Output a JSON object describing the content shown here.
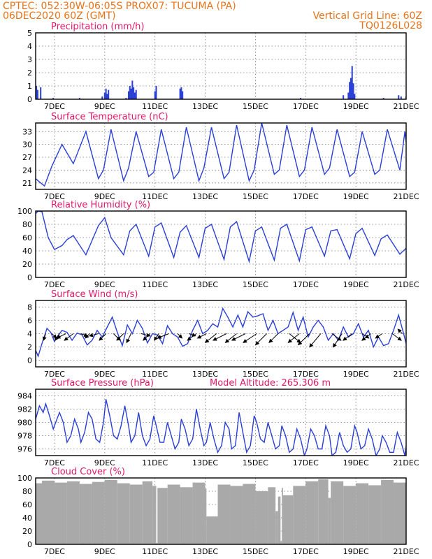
{
  "header": {
    "line1_left": "CPTEC:   052:30W-06:05S   PROX07: TUCUMA (PA)",
    "line2_left": "06DEC2020 60Z (GMT)",
    "line2_right": "Vertical Grid Line: 60Z",
    "line3_right": "TQ0126L028"
  },
  "colors": {
    "header": "#e8731a",
    "title": "#e0186a",
    "series": "#2a3fd6",
    "cloud": "#a9a9a9",
    "arrow": "#000000"
  },
  "x_axis": {
    "start_day": 6.25,
    "end_day": 21,
    "tick_days": [
      7,
      9,
      11,
      13,
      15,
      17,
      19,
      21
    ],
    "tick_labels": [
      "7DEC",
      "9DEC",
      "11DEC",
      "13DEC",
      "15DEC",
      "17DEC",
      "19DEC",
      "21DEC"
    ]
  },
  "chart_data": [
    {
      "id": "precip",
      "type": "bar",
      "title": "Precipitation (mm/h)",
      "ylim": [
        0,
        5
      ],
      "yticks": [
        0,
        1,
        2,
        3,
        4,
        5
      ],
      "grid": true,
      "x": [
        6.28,
        6.33,
        6.45,
        6.95,
        8.0,
        8.9,
        9.0,
        9.05,
        9.1,
        9.15,
        9.85,
        9.95,
        10.0,
        10.05,
        10.1,
        10.15,
        10.2,
        10.25,
        11.0,
        11.05,
        12.0,
        12.05,
        12.1,
        16.8,
        18.5,
        18.7,
        18.75,
        18.8,
        18.85,
        18.9,
        18.95,
        20.1,
        20.7,
        20.8,
        21.0
      ],
      "values": [
        1.0,
        0.7,
        0.9,
        0.1,
        0.1,
        0.2,
        0.5,
        0.8,
        0.4,
        0.7,
        0.1,
        0.6,
        1.0,
        0.8,
        1.4,
        0.9,
        0.5,
        0.7,
        0.6,
        1.0,
        0.8,
        0.9,
        0.6,
        0.1,
        0.3,
        0.5,
        1.3,
        1.6,
        2.5,
        1.2,
        0.4,
        0.1,
        0.3,
        0.2,
        0.2
      ]
    },
    {
      "id": "temp",
      "type": "line",
      "title": "Surface Temperature (nC)",
      "ylim": [
        19.5,
        35
      ],
      "yticks": [
        21,
        24,
        27,
        30,
        33
      ],
      "grid": true,
      "x": [
        6.25,
        6.45,
        6.6,
        6.9,
        7.3,
        7.55,
        7.75,
        8.25,
        8.75,
        8.95,
        9.25,
        9.75,
        9.95,
        10.25,
        10.75,
        10.95,
        11.25,
        11.75,
        11.95,
        12.25,
        12.75,
        12.95,
        13.25,
        13.75,
        13.95,
        14.25,
        14.75,
        14.95,
        15.25,
        15.75,
        15.95,
        16.25,
        16.75,
        16.95,
        17.25,
        17.75,
        17.95,
        18.25,
        18.75,
        18.95,
        19.25,
        19.75,
        19.95,
        20.25,
        20.75,
        20.95,
        21.0
      ],
      "values": [
        22,
        21,
        20.3,
        25,
        30,
        27.5,
        25.5,
        33,
        22,
        24,
        33.5,
        21.5,
        24.5,
        33,
        22.5,
        23.5,
        33.5,
        22,
        23.5,
        34,
        21.5,
        24.5,
        34,
        22,
        23.5,
        34.5,
        21.5,
        24,
        35,
        23,
        24,
        34.5,
        22.5,
        24,
        34,
        23,
        24.5,
        33.5,
        22.5,
        23.5,
        33,
        23,
        24,
        33.5,
        24,
        33,
        30.5
      ]
    },
    {
      "id": "rh",
      "type": "line",
      "title": "Relative Humidity (%)",
      "ylim": [
        0,
        100
      ],
      "yticks": [
        0,
        20,
        40,
        60,
        80,
        100
      ],
      "grid": true,
      "x": [
        6.25,
        6.35,
        6.5,
        6.75,
        7.0,
        7.3,
        7.5,
        7.75,
        8.25,
        8.75,
        9.0,
        9.25,
        9.75,
        10.0,
        10.25,
        10.75,
        11.0,
        11.25,
        11.75,
        12.0,
        12.25,
        12.75,
        13.0,
        13.25,
        13.75,
        14.0,
        14.25,
        14.75,
        15.0,
        15.25,
        15.75,
        16.0,
        16.25,
        16.75,
        17.0,
        17.25,
        17.75,
        18.0,
        18.25,
        18.75,
        19.0,
        19.25,
        19.75,
        20.0,
        20.25,
        20.75,
        21.0
      ],
      "values": [
        96,
        100,
        99,
        60,
        42,
        48,
        57,
        63,
        34,
        78,
        90,
        60,
        34,
        70,
        80,
        32,
        76,
        82,
        30,
        68,
        78,
        30,
        74,
        80,
        27,
        76,
        84,
        24,
        70,
        76,
        26,
        74,
        80,
        25,
        72,
        76,
        32,
        70,
        72,
        28,
        66,
        74,
        33,
        58,
        64,
        35,
        44
      ]
    },
    {
      "id": "wind",
      "type": "line",
      "title": "Surface Wind (m/s)",
      "ylim": [
        -1,
        9
      ],
      "yticks": [
        0,
        2,
        4,
        6,
        8
      ],
      "grid": true,
      "x": [
        6.25,
        6.35,
        6.5,
        6.7,
        6.85,
        7.0,
        7.1,
        7.3,
        7.5,
        7.7,
        7.9,
        8.1,
        8.3,
        8.5,
        8.7,
        8.9,
        9.1,
        9.3,
        9.5,
        9.7,
        9.9,
        10.1,
        10.3,
        10.5,
        10.7,
        10.9,
        11.1,
        11.3,
        11.5,
        11.7,
        11.9,
        12.1,
        12.3,
        12.5,
        12.7,
        12.9,
        13.1,
        13.3,
        13.5,
        13.7,
        13.9,
        14.1,
        14.3,
        14.5,
        14.7,
        14.9,
        15.1,
        15.3,
        15.5,
        15.7,
        15.9,
        16.1,
        16.3,
        16.5,
        16.7,
        16.9,
        17.1,
        17.3,
        17.5,
        17.7,
        17.9,
        18.1,
        18.3,
        18.5,
        18.7,
        18.9,
        19.1,
        19.3,
        19.5,
        19.7,
        19.9,
        20.1,
        20.3,
        20.5,
        20.7,
        20.9,
        21.0
      ],
      "values": [
        1.5,
        0.6,
        2.5,
        4.8,
        4.2,
        2.8,
        3.5,
        4.5,
        4.2,
        3.0,
        4.1,
        3.8,
        2.3,
        3.0,
        4.5,
        3.5,
        5.0,
        6.5,
        4.2,
        2.2,
        5.3,
        4.0,
        6.0,
        4.8,
        2.6,
        4.0,
        3.8,
        2.5,
        5.2,
        4.0,
        3.5,
        2.1,
        2.5,
        4.5,
        6.0,
        4.0,
        4.5,
        5.5,
        5.0,
        7.8,
        6.5,
        5.0,
        6.8,
        5.0,
        7.3,
        6.5,
        6.7,
        7.0,
        4.5,
        6.0,
        4.0,
        4.5,
        5.0,
        7.2,
        4.5,
        6.5,
        3.5,
        5.0,
        6.0,
        5.0,
        3.0,
        4.0,
        3.0,
        5.0,
        3.5,
        4.0,
        5.5,
        3.5,
        4.5,
        2.0,
        3.5,
        2.2,
        2.5,
        4.5,
        6.8,
        4.0,
        2.5
      ]
    },
    {
      "id": "pressure",
      "type": "line",
      "title": "Surface Pressure (hPa)",
      "annotation": "Model Altitude: 265.306 m",
      "ylim": [
        975,
        985
      ],
      "yticks": [
        976,
        978,
        980,
        982,
        984
      ],
      "grid": true,
      "x": [
        6.25,
        6.4,
        6.55,
        6.65,
        6.8,
        6.95,
        7.05,
        7.2,
        7.35,
        7.5,
        7.65,
        7.8,
        7.95,
        8.05,
        8.2,
        8.35,
        8.5,
        8.65,
        8.8,
        8.95,
        9.05,
        9.2,
        9.35,
        9.5,
        9.65,
        9.8,
        9.95,
        10.05,
        10.2,
        10.35,
        10.5,
        10.65,
        10.8,
        10.95,
        11.05,
        11.2,
        11.35,
        11.5,
        11.65,
        11.8,
        11.95,
        12.05,
        12.2,
        12.35,
        12.5,
        12.65,
        12.8,
        12.95,
        13.05,
        13.2,
        13.35,
        13.5,
        13.65,
        13.8,
        13.95,
        14.05,
        14.2,
        14.35,
        14.5,
        14.65,
        14.8,
        14.95,
        15.05,
        15.2,
        15.35,
        15.5,
        15.65,
        15.8,
        15.95,
        16.05,
        16.2,
        16.35,
        16.5,
        16.65,
        16.8,
        16.95,
        17.05,
        17.2,
        17.35,
        17.5,
        17.65,
        17.8,
        17.95,
        18.05,
        18.2,
        18.35,
        18.5,
        18.65,
        18.8,
        18.95,
        19.05,
        19.2,
        19.35,
        19.5,
        19.65,
        19.8,
        19.95,
        20.05,
        20.2,
        20.35,
        20.5,
        20.65,
        20.8,
        20.95,
        21.0
      ],
      "values": [
        980.5,
        982.5,
        981.5,
        982.8,
        981.0,
        979.0,
        980.0,
        981.5,
        980.0,
        977.0,
        978.0,
        980.5,
        979.0,
        977.0,
        978.5,
        981.5,
        980.5,
        977.5,
        977.0,
        980.0,
        983.5,
        981.0,
        978.0,
        977.5,
        979.5,
        982.5,
        979.5,
        977.0,
        978.0,
        981.5,
        978.0,
        976.5,
        977.5,
        981.0,
        979.5,
        977.0,
        977.0,
        980.0,
        978.0,
        976.0,
        977.0,
        980.5,
        979.0,
        976.5,
        977.5,
        982.0,
        979.0,
        976.5,
        977.0,
        980.0,
        977.5,
        975.5,
        976.5,
        980.0,
        979.0,
        976.0,
        976.5,
        981.5,
        978.5,
        975.5,
        976.5,
        981.0,
        980.0,
        977.5,
        977.0,
        980.0,
        978.0,
        976.0,
        976.5,
        979.5,
        978.0,
        975.5,
        976.0,
        979.0,
        977.5,
        975.0,
        976.0,
        979.0,
        978.0,
        976.0,
        976.0,
        979.5,
        978.0,
        975.0,
        975.5,
        978.5,
        976.5,
        975.5,
        976.0,
        979.5,
        978.5,
        976.0,
        976.5,
        979.0,
        977.5,
        975.0,
        976.0,
        978.0,
        977.0,
        975.5,
        975.5,
        978.5,
        977.0,
        975.0,
        976.5
      ]
    },
    {
      "id": "cloud",
      "type": "bar",
      "title": "Cloud Cover (%)",
      "ylim": [
        0,
        100
      ],
      "yticks": [
        0,
        20,
        40,
        60,
        80,
        100
      ],
      "grid": true,
      "x": [
        6.25,
        6.5,
        7.0,
        7.5,
        8.0,
        8.5,
        9.0,
        9.5,
        10.0,
        10.5,
        10.9,
        11.05,
        11.1,
        11.5,
        12.0,
        12.5,
        13.0,
        13.05,
        13.5,
        14.0,
        14.5,
        15.0,
        15.5,
        15.8,
        15.9,
        16.0,
        16.05,
        16.1,
        16.5,
        17.0,
        17.5,
        17.9,
        18.0,
        18.5,
        19.0,
        19.5,
        20.0,
        20.5,
        21.0
      ],
      "values": [
        92,
        96,
        93,
        95,
        91,
        94,
        97,
        92,
        90,
        95,
        88,
        2,
        85,
        90,
        86,
        93,
        84,
        42,
        90,
        88,
        91,
        80,
        86,
        50,
        72,
        5,
        85,
        74,
        88,
        95,
        98,
        70,
        95,
        88,
        92,
        89,
        97,
        93,
        95
      ]
    }
  ],
  "wind_vectors": {
    "x": [
      6.65,
      6.9,
      7.2,
      7.45,
      7.75,
      8.05,
      8.4,
      8.75,
      9.05,
      9.35,
      9.75,
      10.05,
      10.45,
      10.8,
      11.15,
      11.55,
      11.9,
      12.35,
      12.65,
      13.05,
      13.45,
      13.85,
      14.25,
      14.6,
      15.05,
      15.45,
      15.9,
      16.35,
      16.75,
      17.15,
      17.6,
      18.05,
      18.45,
      18.85,
      19.25,
      19.6,
      20.05,
      20.45,
      20.85
    ],
    "u": [
      1,
      -2,
      2,
      4,
      4,
      -3,
      2,
      4,
      3,
      -3,
      3,
      2,
      -4,
      3,
      2,
      5,
      -2,
      -3,
      4,
      4,
      5,
      6,
      5,
      6,
      6,
      5,
      4,
      -5,
      5,
      5,
      5,
      -4,
      4,
      4,
      -3,
      4,
      3,
      -4,
      2
    ],
    "v": [
      3,
      2,
      3,
      2,
      3,
      1,
      2,
      1,
      3,
      3,
      3,
      4,
      1,
      3,
      3,
      2,
      2,
      1,
      3,
      2,
      4,
      3,
      4,
      3,
      4,
      5,
      4,
      4,
      4,
      5,
      6,
      3,
      6,
      3,
      2,
      3,
      2,
      3,
      -2
    ]
  }
}
